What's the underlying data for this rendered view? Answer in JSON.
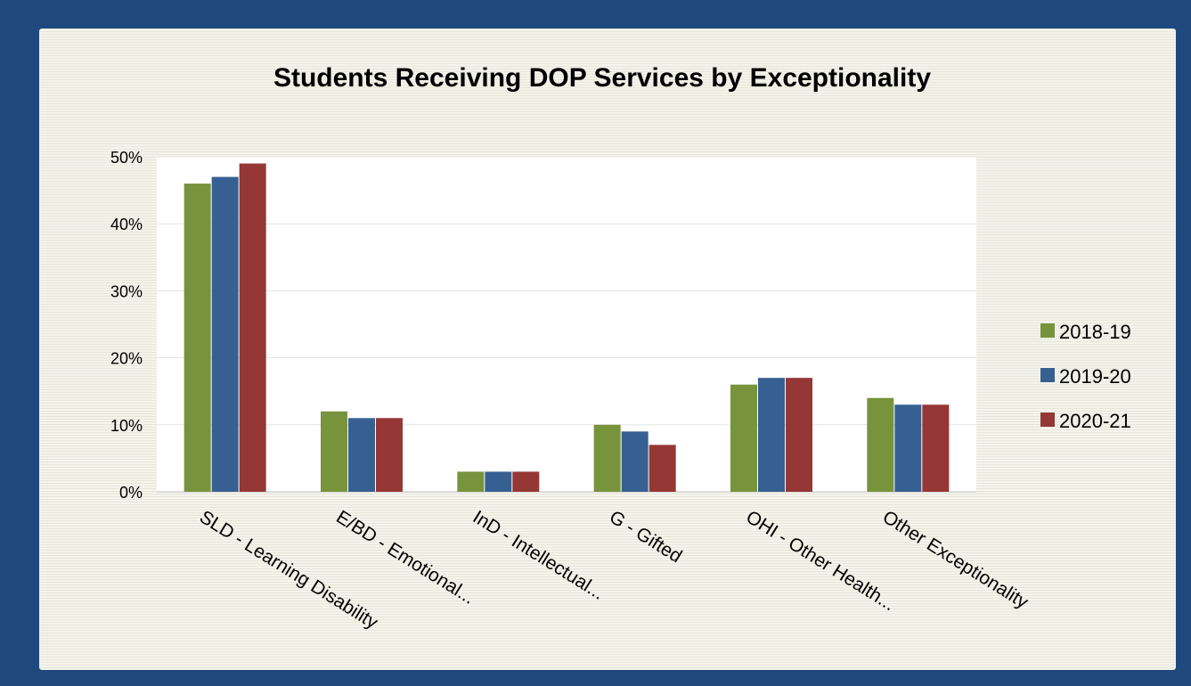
{
  "chart_data": {
    "type": "bar",
    "title": "Students Receiving DOP Services by Exceptionality",
    "xlabel": "",
    "ylabel": "",
    "ylim": [
      0,
      50
    ],
    "y_ticks": [
      "0%",
      "10%",
      "20%",
      "30%",
      "40%",
      "50%"
    ],
    "y_tick_values": [
      0,
      10,
      20,
      30,
      40,
      50
    ],
    "grid": true,
    "legend_position": "right",
    "categories": [
      "SLD - Learning Disability",
      "E/BD - Emotional...",
      "InD - Intellectual...",
      "G - Gifted",
      "OHI - Other Health...",
      "Other Exceptionality"
    ],
    "series": [
      {
        "name": "2018-19",
        "color": "#77933c",
        "values": [
          46,
          12,
          3,
          10,
          16,
          14
        ]
      },
      {
        "name": "2019-20",
        "color": "#376092",
        "values": [
          47,
          11,
          3,
          9,
          17,
          13
        ]
      },
      {
        "name": "2020-21",
        "color": "#953735",
        "values": [
          49,
          11,
          3,
          7,
          17,
          13
        ]
      }
    ]
  }
}
